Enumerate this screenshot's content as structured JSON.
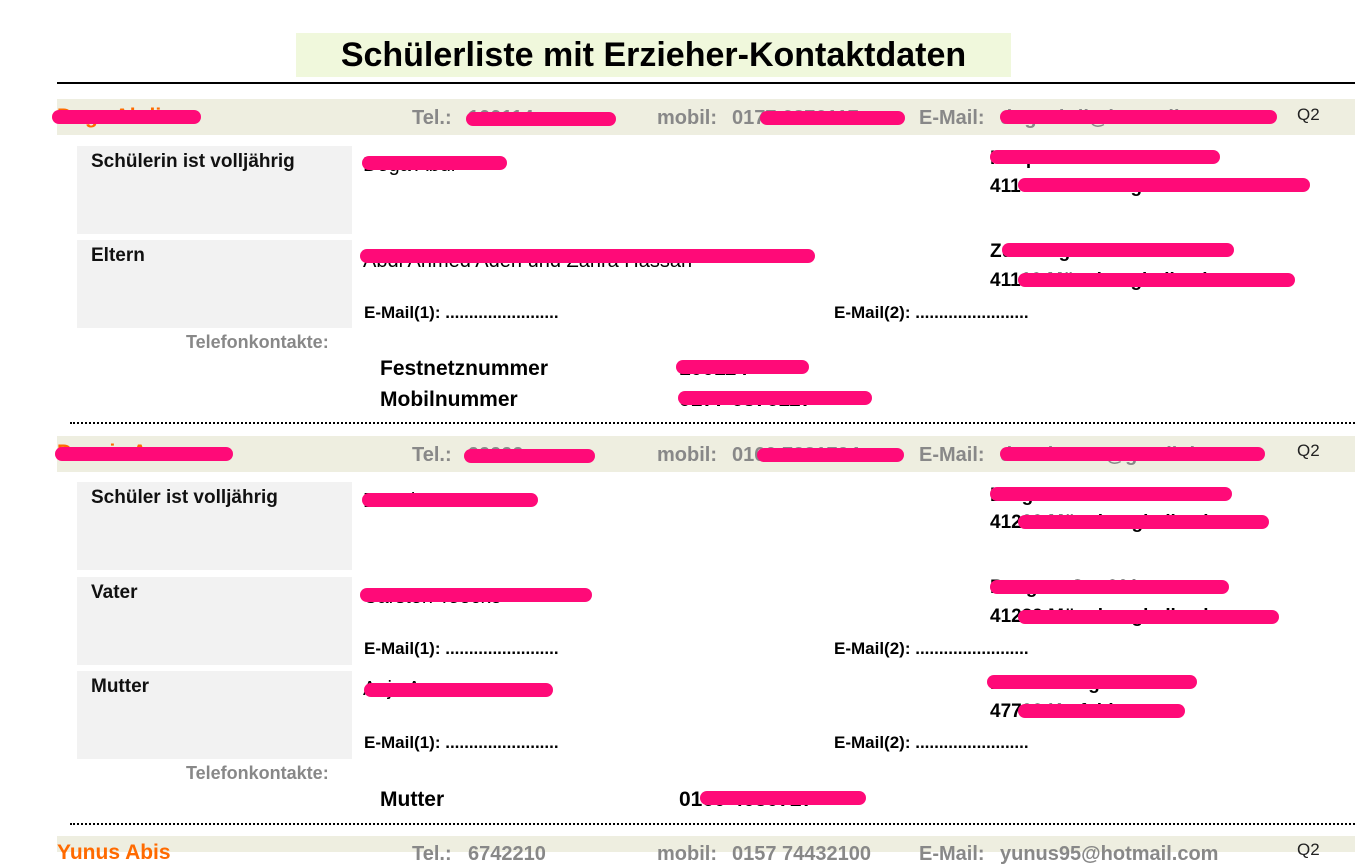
{
  "title": "Schülerliste mit Erzieher-Kontaktdaten",
  "students": [
    {
      "name": "Doga Abdi",
      "tel_label": "Tel.:",
      "tel_value": "100114",
      "mobil_label": "mobil:",
      "mobil_value": "0177 6876117",
      "email_label": "E-Mail:",
      "email_value": "dogaabdi@hotmail.com",
      "grade": "Q2",
      "rows": [
        {
          "label": "Schülerin ist volljährig",
          "person": "Doga Abdi",
          "addr1": "Hauptstraße",
          "addr2": "41169 Mönchengladbach"
        },
        {
          "label": "Eltern",
          "person": "Abdi Ahmed Aden und Zahra Hassan",
          "addr1": "Zur Burgmühle 30 a",
          "addr2": "41169 Mönchengladbach",
          "email1": "E-Mail(1): ........................",
          "email2": "E-Mail(2): ........................"
        }
      ],
      "phones_label": "Telefonkontakte:",
      "phones": [
        {
          "label": "Festnetznummer",
          "value": "100114"
        },
        {
          "label": "Mobilnummer",
          "value": "0177 6876117"
        }
      ]
    },
    {
      "name": "Dennis Acar",
      "tel_label": "Tel.:",
      "tel_value": "99999",
      "mobil_label": "mobil:",
      "mobil_value": "0160 7231794",
      "email_label": "E-Mail:",
      "email_value": "dennisacar@gmail.de",
      "grade": "Q2",
      "rows": [
        {
          "label": "Schüler ist volljährig",
          "person": "Dennis Acar",
          "addr1": "Bergstraße",
          "addr2": "41239 Mönchengladbach"
        },
        {
          "label": "Vater",
          "person": "Carsten Toecke",
          "addr1": "Pongser Str. 201",
          "addr2": "41239 Mönchengladbach",
          "email1": "E-Mail(1): ........................",
          "email2": "E-Mail(2): ........................"
        },
        {
          "label": "Mutter",
          "person": "Anja Acar",
          "addr1": "Frankenring 101",
          "addr2": "47798 Krefeld",
          "email1": "E-Mail(1): ........................",
          "email2": "E-Mail(2): ........................"
        }
      ],
      "phones_label": "Telefonkontakte:",
      "phones": [
        {
          "label": "Mutter",
          "value": "0160 4030727"
        }
      ]
    },
    {
      "name": "Yunus Abis",
      "tel_label": "Tel.:",
      "tel_value": "6742210",
      "mobil_label": "mobil:",
      "mobil_value": "0157 74432100",
      "email_label": "E-Mail:",
      "email_value": "yunus95@hotmail.com",
      "grade": "Q2"
    }
  ],
  "colors": {
    "accent": "#ff6a00",
    "band": "#eeeee0",
    "title_bg": "#f0f8dc",
    "redaction": "#ff0a78",
    "label_box": "#f2f2f2"
  }
}
